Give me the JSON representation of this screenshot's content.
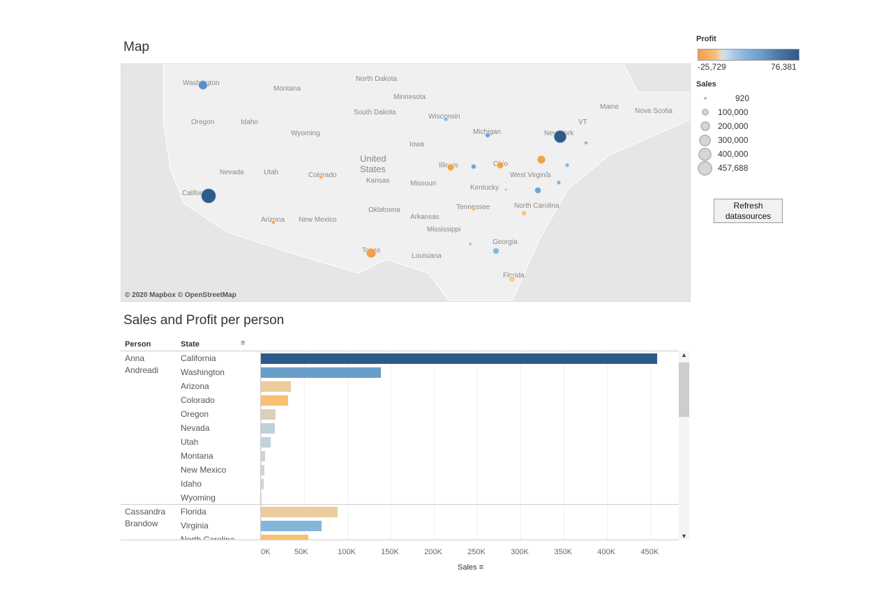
{
  "map": {
    "title": "Map",
    "credit": "© 2020 Mapbox © OpenStreetMap",
    "labels": [
      "Washington",
      "Montana",
      "North Dakota",
      "Minnesota",
      "South Dakota",
      "Wisconsin",
      "Oregon",
      "Idaho",
      "Wyoming",
      "Michigan",
      "New York",
      "Maine",
      "Nova Scotia",
      "VT",
      "United States",
      "Iowa",
      "Nevada",
      "Utah",
      "Colorado",
      "Kansas",
      "Illinois",
      "Ohio",
      "West Virginia",
      "Missouri",
      "Kentucky",
      "California",
      "Oklahoma",
      "Tennessee",
      "North Carolina",
      "Arizona",
      "New Mexico",
      "Arkansas",
      "Mississippi",
      "Texas",
      "Louisiana",
      "Georgia",
      "Florida"
    ]
  },
  "legend": {
    "profit_title": "Profit",
    "profit_min": "-25,729",
    "profit_max": "76,381",
    "sales_title": "Sales",
    "sizes": [
      "920",
      "100,000",
      "200,000",
      "300,000",
      "400,000",
      "457,688"
    ]
  },
  "refresh_button": "Refresh\ndatasources",
  "chart_data": {
    "type": "bar",
    "title": "Sales and Profit per person",
    "xlabel": "Sales",
    "columns": [
      "Person",
      "State"
    ],
    "ticks": [
      "0K",
      "50K",
      "100K",
      "150K",
      "200K",
      "250K",
      "300K",
      "350K",
      "400K",
      "450K"
    ],
    "xlim": [
      0,
      470000
    ],
    "groups": [
      {
        "person": "Anna Andreadi",
        "rows": [
          {
            "state": "California",
            "sales": 457688,
            "color": "#2c5a8a"
          },
          {
            "state": "Washington",
            "sales": 139000,
            "color": "#6a9ec9"
          },
          {
            "state": "Arizona",
            "sales": 35000,
            "color": "#eccb9c"
          },
          {
            "state": "Colorado",
            "sales": 31500,
            "color": "#f8c070"
          },
          {
            "state": "Oregon",
            "sales": 17000,
            "color": "#dccfb7"
          },
          {
            "state": "Nevada",
            "sales": 16500,
            "color": "#bfd1d9"
          },
          {
            "state": "Utah",
            "sales": 11000,
            "color": "#c3d3dc"
          },
          {
            "state": "Montana",
            "sales": 5000,
            "color": "#d2d2d2"
          },
          {
            "state": "New Mexico",
            "sales": 4200,
            "color": "#d2d2d2"
          },
          {
            "state": "Idaho",
            "sales": 3500,
            "color": "#d2d2d2"
          },
          {
            "state": "Wyoming",
            "sales": 920,
            "color": "#d2d2d2"
          }
        ]
      },
      {
        "person": "Cassandra Brandow",
        "rows": [
          {
            "state": "Florida",
            "sales": 89000,
            "color": "#eccb9c"
          },
          {
            "state": "Virginia",
            "sales": 70000,
            "color": "#85b6da"
          },
          {
            "state": "North Carolina",
            "sales": 55000,
            "color": "#f8c070"
          }
        ]
      }
    ]
  }
}
